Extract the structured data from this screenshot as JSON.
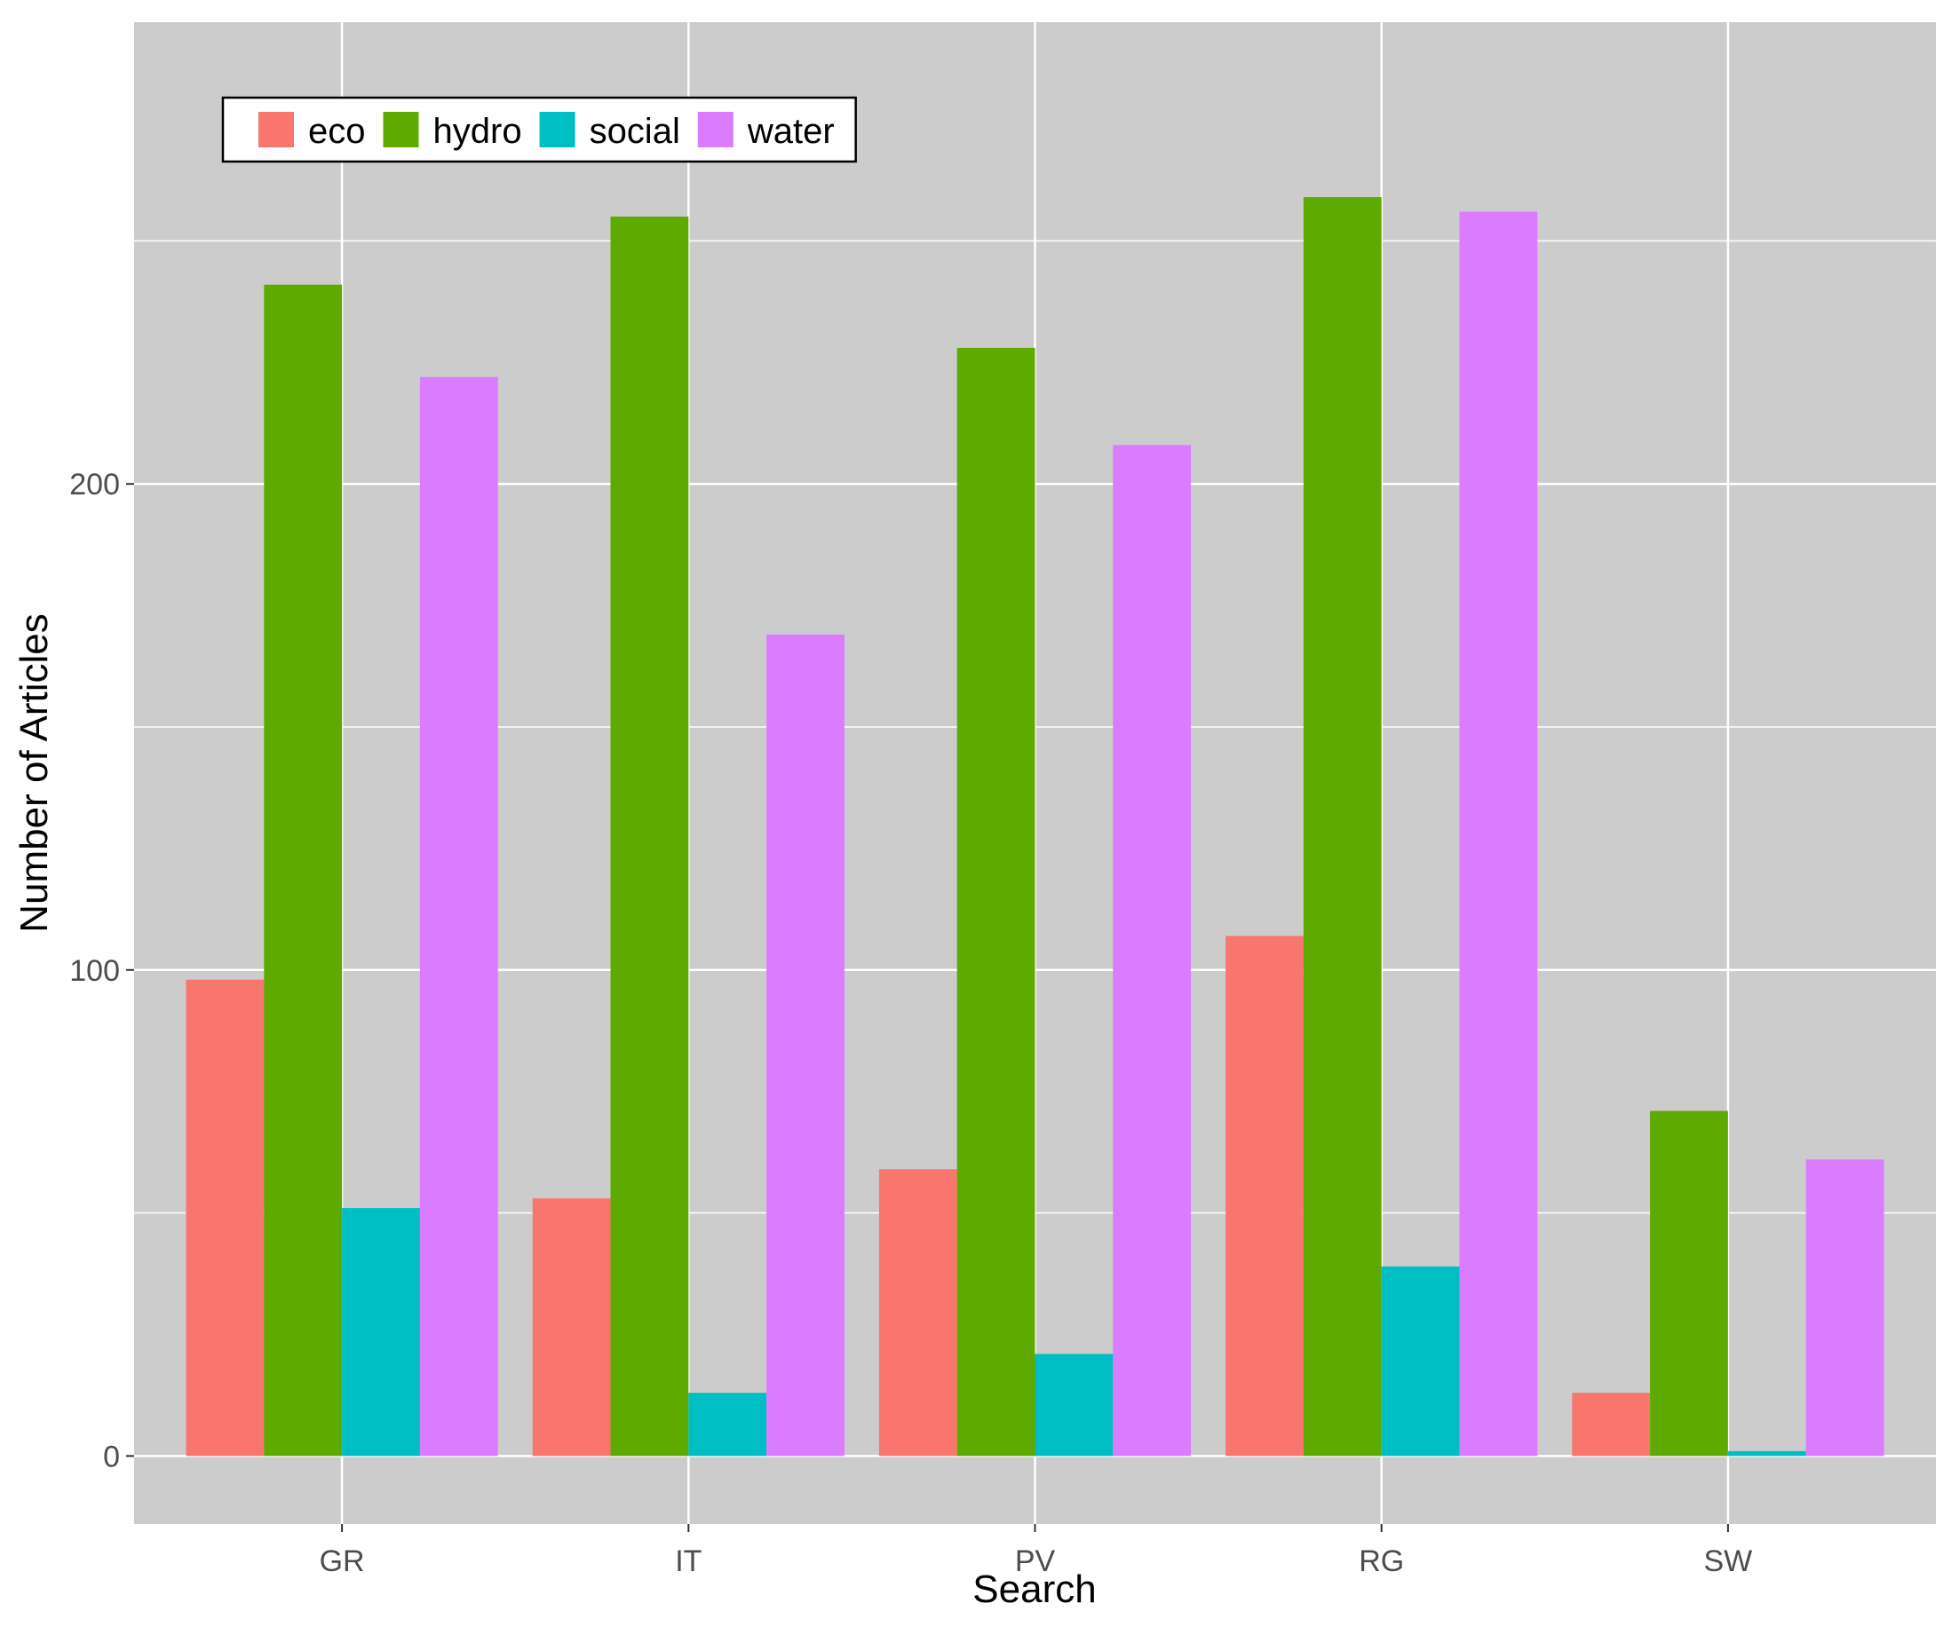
{
  "chart_data": {
    "type": "bar",
    "xlabel": "Search",
    "ylabel": "Number of Articles",
    "categories": [
      "GR",
      "IT",
      "PV",
      "RG",
      "SW"
    ],
    "series": [
      {
        "name": "eco",
        "color": "#F8766D",
        "values": [
          98,
          53,
          59,
          107,
          13
        ]
      },
      {
        "name": "hydro",
        "color": "#5FAA00",
        "values": [
          241,
          255,
          228,
          259,
          71
        ]
      },
      {
        "name": "social",
        "color": "#00BFC4",
        "values": [
          51,
          13,
          21,
          39,
          1
        ]
      },
      {
        "name": "water",
        "color": "#DB7BFF",
        "values": [
          222,
          169,
          208,
          256,
          61
        ]
      }
    ],
    "ylim": [
      -14,
      295
    ],
    "y_ticks": [
      0,
      100,
      200
    ],
    "y_tick_labels": [
      "0",
      "100",
      "200"
    ],
    "grid": true,
    "legend_position": "top-left",
    "panel_background": "#CCCCCC",
    "grid_color": "#FFFFFF"
  }
}
